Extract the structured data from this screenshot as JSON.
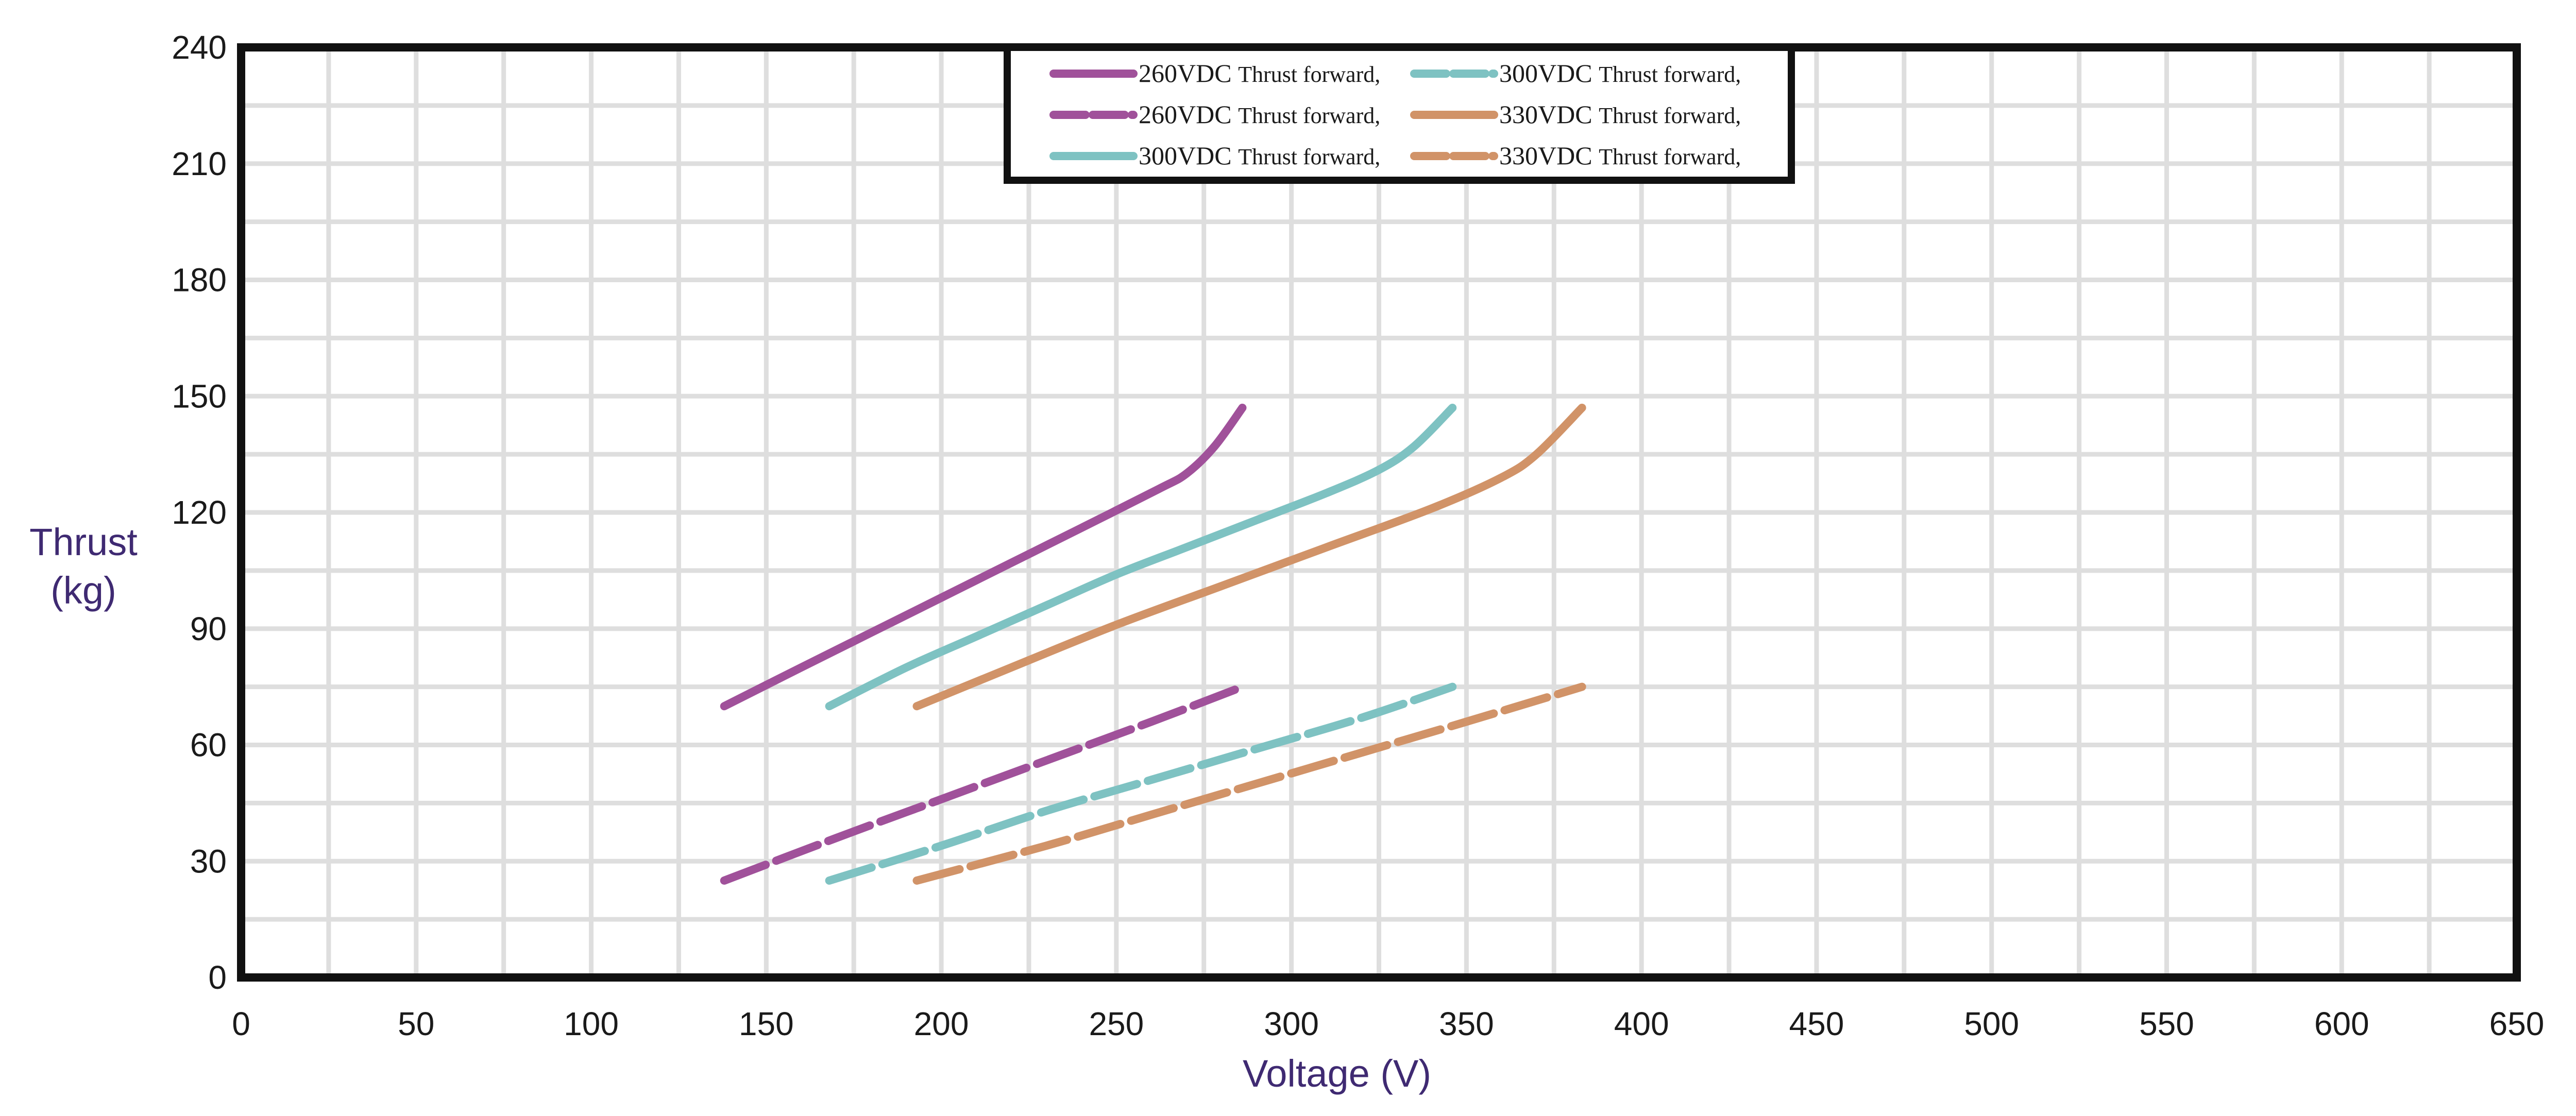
{
  "chart_data": {
    "type": "line",
    "title": "",
    "xlabel": "Voltage (V)",
    "ylabel_lines": [
      "Thrust",
      "(kg)"
    ],
    "xlim": [
      0,
      650
    ],
    "ylim": [
      0,
      240
    ],
    "x_ticks": [
      0,
      50,
      100,
      150,
      200,
      250,
      300,
      350,
      400,
      450,
      500,
      550,
      600,
      650
    ],
    "y_ticks": [
      0,
      30,
      60,
      90,
      120,
      150,
      180,
      210,
      240
    ],
    "x_minor_step": 25,
    "y_minor_step": 15,
    "grid": true,
    "legend_position": "top-center",
    "series": [
      {
        "name": "260VDC Thrust forward,",
        "voltage": "260VDC",
        "label": "Thrust forward,",
        "color": "#a0519a",
        "style": "solid",
        "points": [
          [
            138,
            70
          ],
          [
            160,
            80
          ],
          [
            180,
            89
          ],
          [
            200,
            98
          ],
          [
            220,
            107
          ],
          [
            240,
            116
          ],
          [
            262,
            126
          ],
          [
            270,
            130
          ],
          [
            278,
            137
          ],
          [
            286,
            147
          ]
        ]
      },
      {
        "name": "260VDC Thrust forward,",
        "voltage": "260VDC",
        "label": "Thrust forward,",
        "color": "#a0519a",
        "style": "dashed",
        "points": [
          [
            138,
            25
          ],
          [
            170,
            36
          ],
          [
            200,
            46
          ],
          [
            230,
            56
          ],
          [
            260,
            66
          ],
          [
            286,
            75
          ]
        ]
      },
      {
        "name": "300VDC Thrust forward,",
        "voltage": "300VDC",
        "label": "Thrust forward,",
        "color": "#7ec2c2",
        "style": "solid",
        "points": [
          [
            168,
            70
          ],
          [
            190,
            80
          ],
          [
            210,
            88
          ],
          [
            230,
            96
          ],
          [
            250,
            104
          ],
          [
            270,
            111
          ],
          [
            290,
            118
          ],
          [
            310,
            125
          ],
          [
            325,
            131
          ],
          [
            335,
            137
          ],
          [
            346,
            147
          ]
        ]
      },
      {
        "name": "300VDC Thrust forward,",
        "voltage": "300VDC",
        "label": "Thrust forward,",
        "color": "#7ec2c2",
        "style": "dashed",
        "points": [
          [
            168,
            25
          ],
          [
            200,
            34
          ],
          [
            230,
            43
          ],
          [
            260,
            51
          ],
          [
            290,
            59
          ],
          [
            320,
            67
          ],
          [
            346,
            75
          ]
        ]
      },
      {
        "name": "330VDC Thrust forward,",
        "voltage": "330VDC",
        "label": "Thrust forward,",
        "color": "#d19368",
        "style": "solid",
        "points": [
          [
            193,
            70
          ],
          [
            220,
            80
          ],
          [
            250,
            91
          ],
          [
            280,
            101
          ],
          [
            310,
            111
          ],
          [
            340,
            121
          ],
          [
            360,
            129
          ],
          [
            370,
            135
          ],
          [
            383,
            147
          ]
        ]
      },
      {
        "name": "330VDC Thrust forward,",
        "voltage": "330VDC",
        "label": "Thrust forward,",
        "color": "#d19368",
        "style": "dashed",
        "points": [
          [
            193,
            25
          ],
          [
            230,
            34
          ],
          [
            260,
            42
          ],
          [
            290,
            50
          ],
          [
            320,
            58
          ],
          [
            350,
            66
          ],
          [
            383,
            75
          ]
        ]
      }
    ]
  }
}
